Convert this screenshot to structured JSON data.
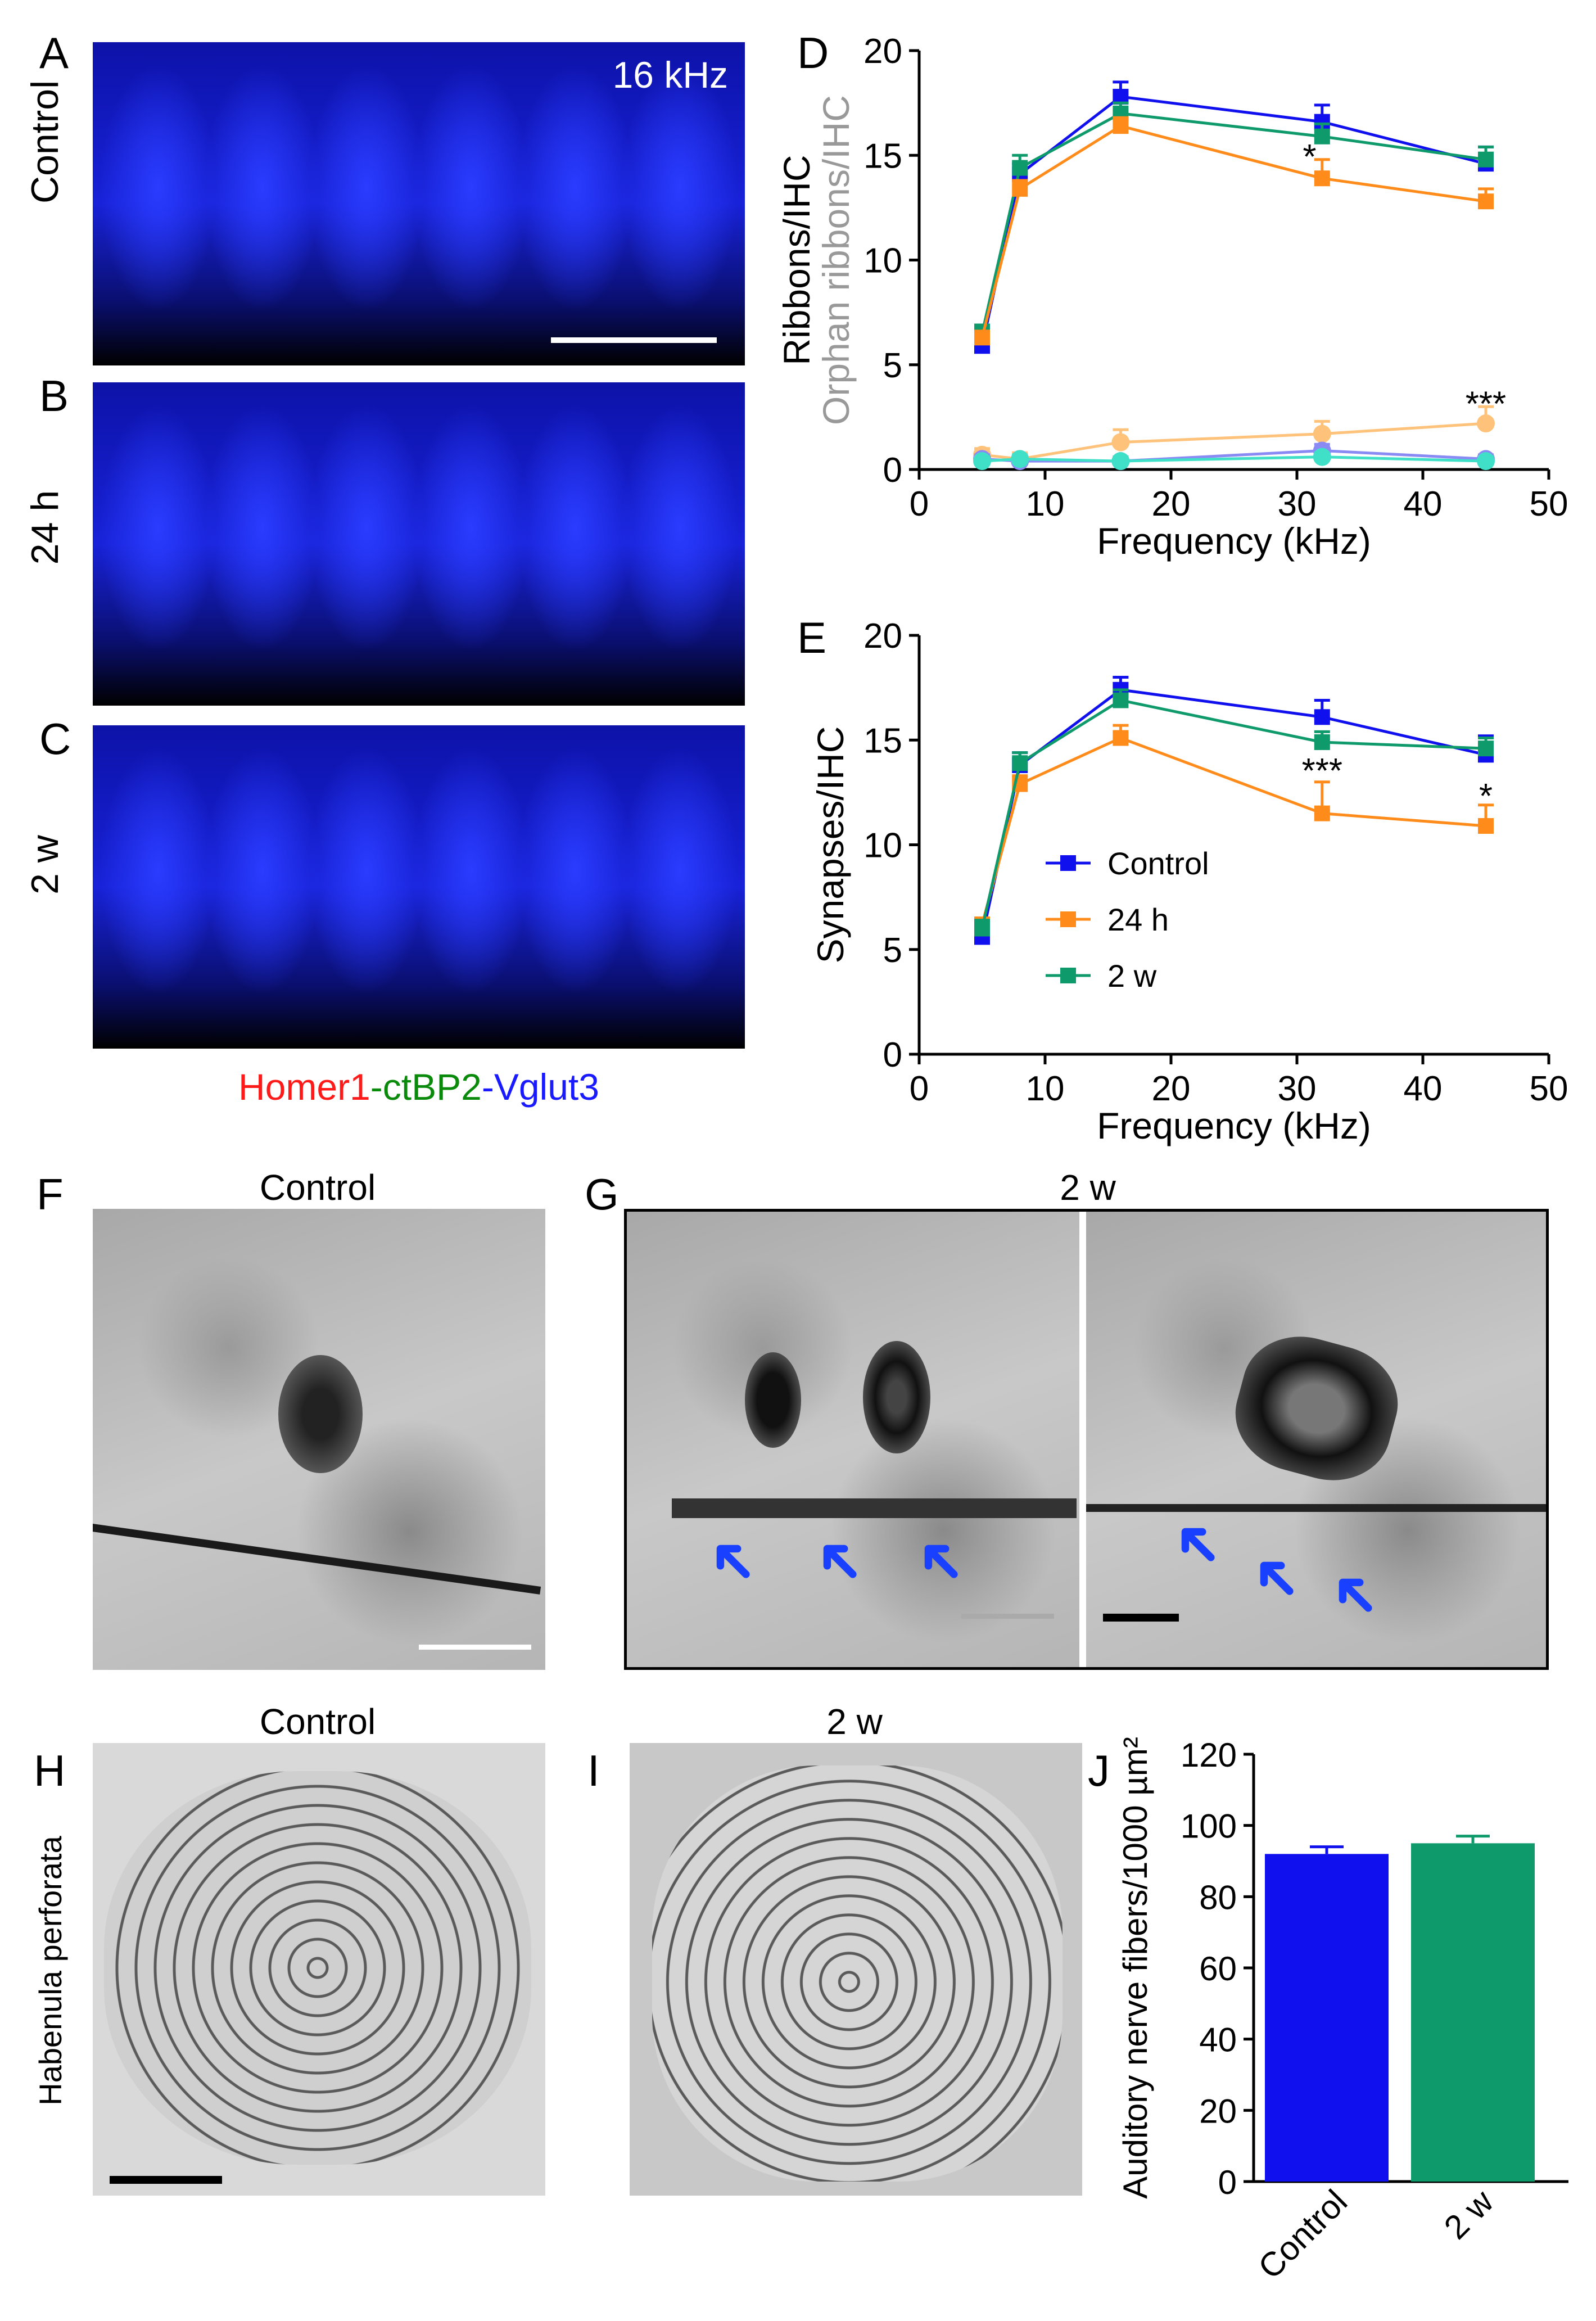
{
  "panels": {
    "A": {
      "letter": "A",
      "side_label": "Control",
      "corner_label": "16 kHz"
    },
    "B": {
      "letter": "B",
      "side_label": "24 h"
    },
    "C": {
      "letter": "C",
      "side_label": "2 w"
    },
    "stain_legend": {
      "part1": "Homer1",
      "sep1": "-",
      "part2": "ctBP2",
      "sep2": "-",
      "part3": "Vglut3",
      "color1": "#ff1a1a",
      "color2": "#0a8a0a",
      "color3": "#1a1aff"
    },
    "F": {
      "letter": "F",
      "title": "Control"
    },
    "G": {
      "letter": "G",
      "title": "2 w"
    },
    "H": {
      "letter": "H",
      "title": "Control",
      "side_label": "Habenula perforata"
    },
    "I": {
      "letter": "I",
      "title": "2 w"
    },
    "D": {
      "letter": "D"
    },
    "E": {
      "letter": "E"
    },
    "J": {
      "letter": "J"
    }
  },
  "colors": {
    "control": "#1010ee",
    "h24": "#ff8c1a",
    "w2": "#0e9a6a",
    "h24_light": "#ffc27a",
    "control_light": "#8a8af5",
    "w2_light": "#40e0c8",
    "orphan_label": "#999999",
    "arrow": "#1a40ff"
  },
  "chart_data": [
    {
      "id": "D",
      "type": "line",
      "xlabel": "Frequency (kHz)",
      "ylabel": "Ribbons/IHC",
      "ylabel2": "Orphan ribbons/IHC",
      "xlim": [
        0,
        50
      ],
      "ylim": [
        0,
        20
      ],
      "xticks": [
        0,
        10,
        20,
        30,
        40,
        50
      ],
      "yticks": [
        0,
        5,
        10,
        15,
        20
      ],
      "x": [
        5,
        8,
        16,
        32,
        45
      ],
      "series": [
        {
          "key": "control",
          "marker": "square",
          "values": [
            5.9,
            14.1,
            17.8,
            16.6,
            14.6
          ],
          "err": [
            0.4,
            0.5,
            0.7,
            0.8,
            0.8
          ]
        },
        {
          "key": "w2",
          "marker": "square",
          "values": [
            6.5,
            14.4,
            17.0,
            15.9,
            14.8
          ],
          "err": [
            0.4,
            0.6,
            0.5,
            0.6,
            0.6
          ]
        },
        {
          "key": "h24",
          "marker": "square",
          "values": [
            6.3,
            13.4,
            16.4,
            13.9,
            12.8
          ],
          "err": [
            0.3,
            0.4,
            0.4,
            0.9,
            0.6
          ]
        },
        {
          "key": "h24_light",
          "marker": "circle",
          "values": [
            0.7,
            0.5,
            1.3,
            1.7,
            2.2
          ],
          "err": [
            0.3,
            0.3,
            0.6,
            0.6,
            0.8
          ]
        },
        {
          "key": "control_light",
          "marker": "circle",
          "values": [
            0.5,
            0.4,
            0.4,
            0.9,
            0.5
          ],
          "err": [
            0.2,
            0.2,
            0.2,
            0.3,
            0.2
          ]
        },
        {
          "key": "w2_light",
          "marker": "circle",
          "values": [
            0.4,
            0.5,
            0.4,
            0.6,
            0.4
          ],
          "err": [
            0.2,
            0.2,
            0.2,
            0.2,
            0.2
          ]
        }
      ],
      "annotations": [
        {
          "x": 31,
          "y": 14.9,
          "text": "*"
        },
        {
          "x": 45,
          "y": 3.1,
          "text": "***"
        }
      ]
    },
    {
      "id": "E",
      "type": "line",
      "xlabel": "Frequency (kHz)",
      "ylabel": "Synapses/IHC",
      "xlim": [
        0,
        50
      ],
      "ylim": [
        0,
        20
      ],
      "xticks": [
        0,
        10,
        20,
        30,
        40,
        50
      ],
      "yticks": [
        0,
        5,
        10,
        15,
        20
      ],
      "x": [
        5,
        8,
        16,
        32,
        45
      ],
      "series": [
        {
          "key": "control",
          "name": "Control",
          "marker": "square",
          "values": [
            5.6,
            13.8,
            17.4,
            16.1,
            14.3
          ],
          "err": [
            0.4,
            0.6,
            0.6,
            0.8,
            0.9
          ]
        },
        {
          "key": "h24",
          "name": "24 h",
          "marker": "square",
          "values": [
            6.2,
            12.9,
            15.1,
            11.5,
            10.9
          ],
          "err": [
            0.3,
            0.4,
            0.6,
            1.5,
            1.0
          ]
        },
        {
          "key": "w2",
          "name": "2 w",
          "marker": "square",
          "values": [
            6.0,
            13.9,
            16.9,
            14.9,
            14.6
          ],
          "err": [
            0.4,
            0.5,
            0.5,
            0.5,
            0.5
          ]
        }
      ],
      "annotations": [
        {
          "x": 32,
          "y": 13.5,
          "text": "***"
        },
        {
          "x": 45,
          "y": 12.3,
          "text": "*"
        }
      ]
    },
    {
      "id": "J",
      "type": "bar",
      "ylabel": "Auditory nerve fibers/1000 µm²",
      "categories": [
        "Control",
        "2 w"
      ],
      "values": [
        92,
        95
      ],
      "err": [
        2,
        2
      ],
      "ylim": [
        0,
        120
      ],
      "yticks": [
        0,
        20,
        40,
        60,
        80,
        100,
        120
      ]
    }
  ]
}
